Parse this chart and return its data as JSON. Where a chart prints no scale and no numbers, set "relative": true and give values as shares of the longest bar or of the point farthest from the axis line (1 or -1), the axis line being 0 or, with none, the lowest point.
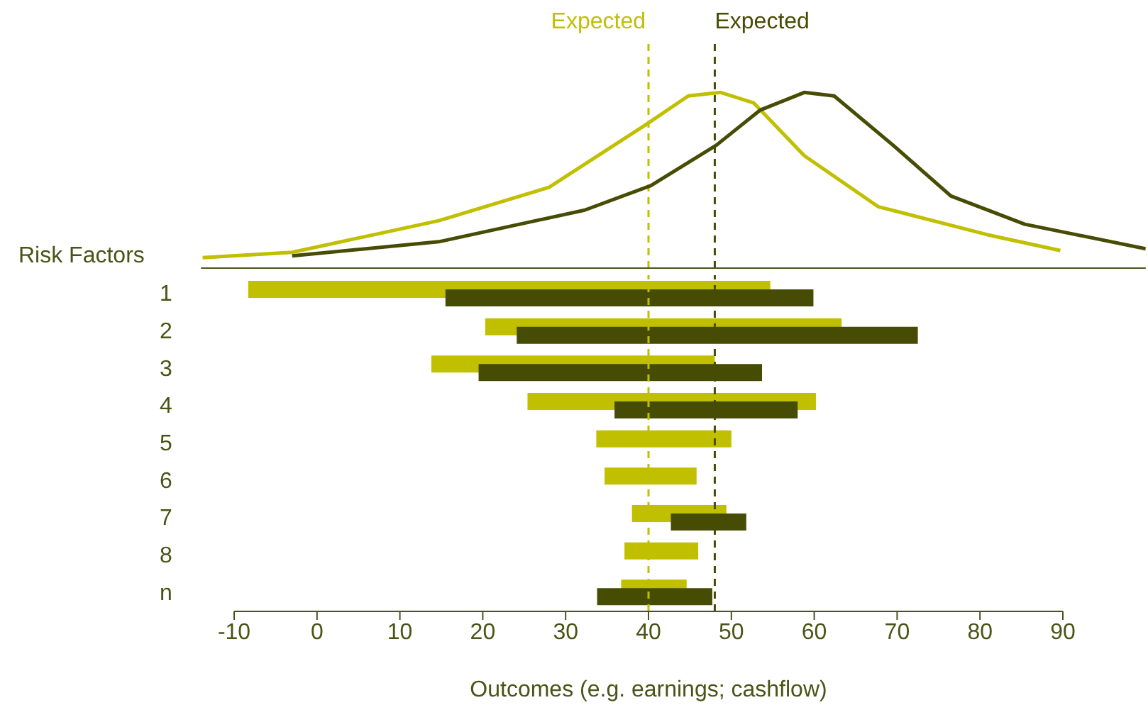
{
  "chart_data": [
    {
      "type": "line",
      "relative": true,
      "xlim": [
        -14,
        100
      ],
      "xticks": [
        -10,
        0,
        10,
        20,
        30,
        40,
        50,
        60,
        70,
        80,
        90
      ],
      "tick_labels": false,
      "series": [
        {
          "color": "#c0bf00",
          "x": [
            -13.8,
            -3.0,
            14.7,
            28,
            39.8,
            44.8,
            48.7,
            52.7,
            58.8,
            67.7,
            80.9,
            89.7
          ],
          "values": [
            0.06,
            0.09,
            0.27,
            0.46,
            0.82,
            0.98,
            1.0,
            0.94,
            0.64,
            0.35,
            0.19,
            0.1
          ]
        },
        {
          "color": "#474c05",
          "x": [
            -3.0,
            14.7,
            32.3,
            40.3,
            48.2,
            53.5,
            58.8,
            62.4,
            69.5,
            76.5,
            85.4,
            100
          ],
          "values": [
            0.07,
            0.15,
            0.33,
            0.47,
            0.7,
            0.9,
            1.0,
            0.98,
            0.7,
            0.41,
            0.25,
            0.11
          ]
        }
      ],
      "ref_lines": [
        {
          "axis": "x",
          "value": 40,
          "label": "Expected",
          "color": "#c0bf00",
          "line_style": "dashed"
        },
        {
          "axis": "x",
          "value": 48,
          "label": "Expected",
          "color": "#474c05",
          "line_style": "dashed"
        }
      ]
    },
    {
      "type": "bar",
      "orientation": "horizontal",
      "categories": [
        "1",
        "2",
        "3",
        "4",
        "5",
        "6",
        "7",
        "8",
        "n"
      ],
      "ylabel": "Risk Factors",
      "xlabel": "Outcomes (e.g. earnings; cashflow)",
      "xlim": [
        -10,
        90
      ],
      "xticks": [
        -10,
        0,
        10,
        20,
        30,
        40,
        50,
        60,
        70,
        80,
        90
      ],
      "series": [
        {
          "color": "#c0bf00",
          "base": [
            -8.3,
            20.3,
            13.8,
            25.4,
            33.7,
            34.7,
            38.0,
            37.1,
            36.7
          ],
          "values": [
            63.0,
            43.0,
            34.2,
            34.8,
            16.3,
            11.1,
            11.4,
            8.9,
            7.9
          ]
        },
        {
          "color": "#474c05",
          "base": [
            15.5,
            24.1,
            19.5,
            35.9,
            null,
            null,
            42.7,
            null,
            33.8
          ],
          "values": [
            44.4,
            48.4,
            34.2,
            22.1,
            null,
            null,
            9.1,
            null,
            13.9
          ]
        }
      ],
      "ref_lines": [
        {
          "axis": "x",
          "value": 40,
          "color": "#c0bf00",
          "line_style": "dashed"
        },
        {
          "axis": "x",
          "value": 48,
          "color": "#474c05",
          "line_style": "dashed"
        }
      ]
    }
  ]
}
